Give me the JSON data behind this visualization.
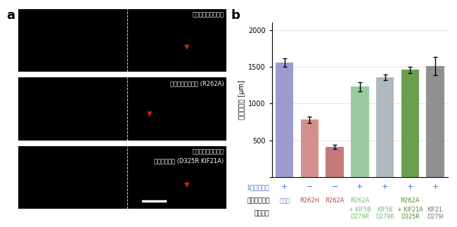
{
  "bar_values": [
    1560,
    780,
    410,
    1230,
    1360,
    1460,
    1510
  ],
  "bar_errors": [
    55,
    45,
    30,
    60,
    40,
    45,
    120
  ],
  "bar_colors": [
    "#9B9BCF",
    "#D4908A",
    "#C47A7A",
    "#98C9A0",
    "#B0B8C0",
    "#6B9E4E",
    "#909090"
  ],
  "ylabel": "脳梁の長さ [μm]",
  "ylim": [
    0,
    2100
  ],
  "yticks": [
    0,
    500,
    1000,
    1500,
    2000
  ],
  "grid": true,
  "motion_label": "1分子の運動",
  "motion_values": [
    "+",
    "−",
    "−",
    "+",
    "+",
    "+",
    "+"
  ],
  "motion_color": "#3366CC",
  "tubulin_label": "チューブリン",
  "kinesin_label": "キネシン",
  "panel_a_label": "a",
  "panel_b_label": "b",
  "img1_label": "野生型チューブリン",
  "img2_label": "変異チューブリン (R262A)",
  "img3_label_line1": "変異チューブリン＋",
  "img3_label_line2": "変異キネシン (D325R KIF21A)",
  "background_color": "#FFFFFF",
  "tubulin_data": [
    {
      "text": "野生型",
      "color": "#6666AA",
      "col_idx": 0
    },
    {
      "text": "R262H",
      "color": "#C04040",
      "col_idx": 1
    },
    {
      "text": "R262A",
      "color": "#C04040",
      "col_idx": 2
    },
    {
      "text": "R262A",
      "color": "#70B870",
      "col_idx": 3
    },
    {
      "text": "",
      "color": "#70B870",
      "col_idx": 4
    },
    {
      "text": "R262A",
      "color": "#4A8A2A",
      "col_idx": 5
    },
    {
      "text": "",
      "color": "#707070",
      "col_idx": 6
    }
  ],
  "kinesin_line1_data": [
    {
      "text": "+ KIF5B",
      "color": "#70B870",
      "col_idx": 3
    },
    {
      "text": "KIF5B",
      "color": "#70B870",
      "col_idx": 4
    },
    {
      "text": "+ KIF21A",
      "color": "#4A8A2A",
      "col_idx": 5
    },
    {
      "text": "KIF21.",
      "color": "#707070",
      "col_idx": 6
    }
  ],
  "kinesin_line2_data": [
    {
      "text": "D279R",
      "color": "#70B870",
      "col_idx": 3
    },
    {
      "text": "D279R",
      "color": "#70B870",
      "col_idx": 4
    },
    {
      "text": "D325R",
      "color": "#4A8A2A",
      "col_idx": 5
    },
    {
      "text": "D279I",
      "color": "#707070",
      "col_idx": 6
    }
  ]
}
